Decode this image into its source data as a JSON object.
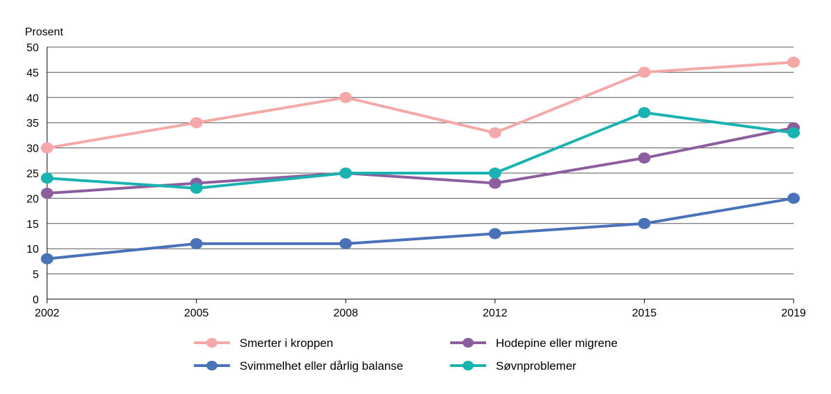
{
  "chart_data": {
    "type": "line",
    "title": "",
    "xlabel": "",
    "ylabel": "Prosent",
    "ylim": [
      0,
      50
    ],
    "yticks": [
      0,
      5,
      10,
      15,
      20,
      25,
      30,
      35,
      40,
      45,
      50
    ],
    "categories": [
      "2002",
      "2005",
      "2008",
      "2012",
      "2015",
      "2019"
    ],
    "grid": "horizontal",
    "legend_position": "bottom",
    "series": [
      {
        "name": "Smerter i kroppen",
        "color": "#f4a9a8",
        "values": [
          30,
          35,
          40,
          33,
          45,
          47
        ]
      },
      {
        "name": "Hodepine eller migrene",
        "color": "#8c5e9e",
        "values": [
          21,
          23,
          25,
          23,
          28,
          34
        ]
      },
      {
        "name": "Svimmelhet eller dårlig balanse",
        "color": "#4a72b8",
        "values": [
          8,
          11,
          11,
          13,
          15,
          20
        ]
      },
      {
        "name": "Søvnproblemer",
        "color": "#1bb3b1",
        "values": [
          24,
          22,
          25,
          25,
          37,
          33
        ]
      }
    ]
  }
}
